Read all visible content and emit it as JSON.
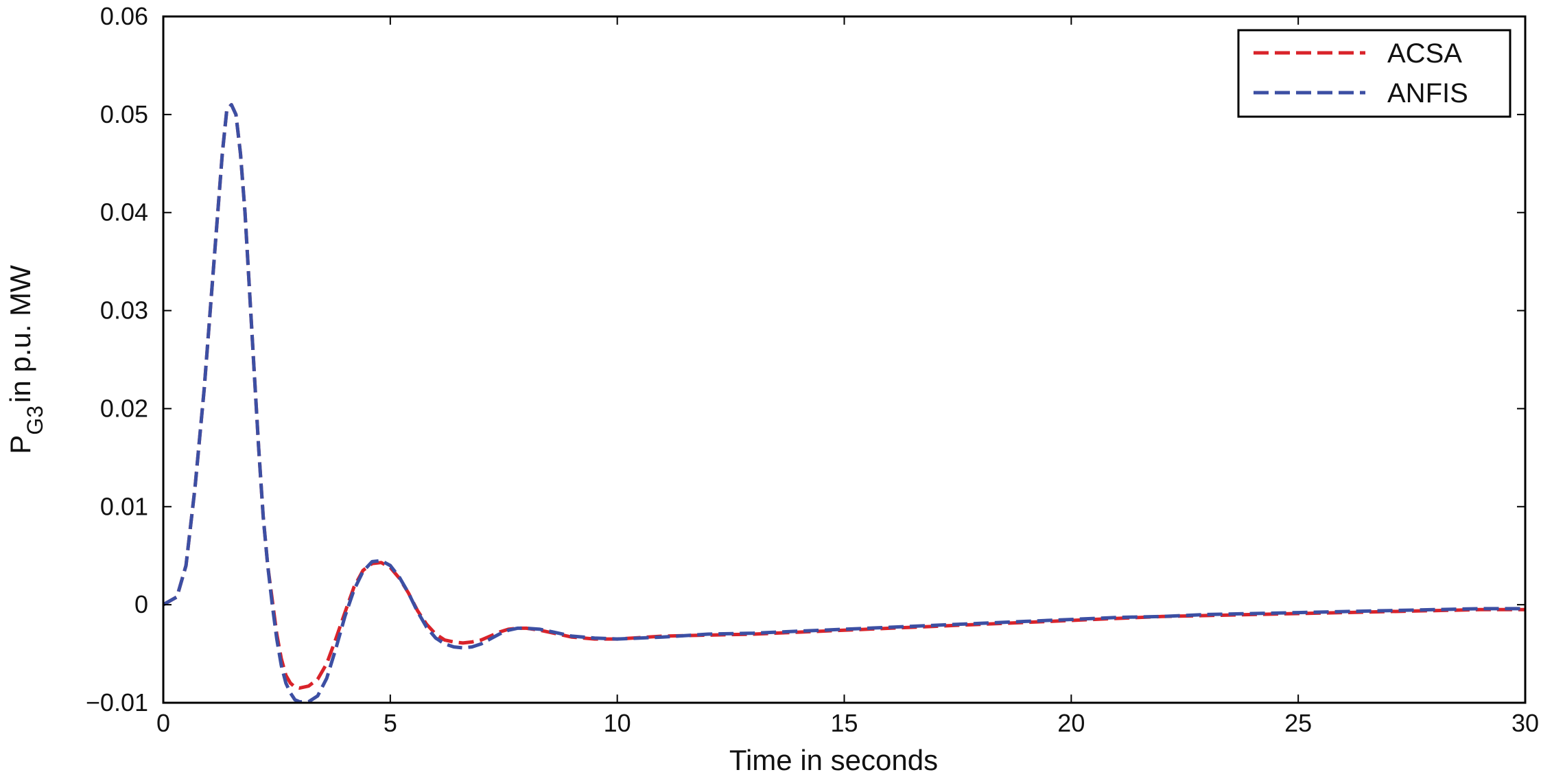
{
  "chart_data": {
    "type": "line",
    "xlabel": "Time in seconds",
    "ylabel": {
      "main": "P",
      "sub": "G3",
      "rest": "in p.u. MW"
    },
    "xlim": [
      0,
      30
    ],
    "ylim": [
      -0.01,
      0.06
    ],
    "xticks": [
      0,
      5,
      10,
      15,
      20,
      25,
      30
    ],
    "xtick_labels": [
      "0",
      "5",
      "10",
      "15",
      "20",
      "25",
      "30"
    ],
    "yticks": [
      -0.01,
      0,
      0.01,
      0.02,
      0.03,
      0.04,
      0.05,
      0.06
    ],
    "ytick_labels": [
      "−0.01",
      "0",
      "0.01",
      "0.02",
      "0.03",
      "0.04",
      "0.05",
      "0.06"
    ],
    "grid": false,
    "legend_position": "top-right",
    "series": [
      {
        "name": "ACSA",
        "color": "#d9232a",
        "dashed": true,
        "x": [
          0,
          0.3,
          0.5,
          0.7,
          0.9,
          1.0,
          1.1,
          1.2,
          1.3,
          1.4,
          1.5,
          1.6,
          1.7,
          1.8,
          1.9,
          2.0,
          2.1,
          2.2,
          2.3,
          2.4,
          2.5,
          2.6,
          2.7,
          2.8,
          2.9,
          3.0,
          3.2,
          3.4,
          3.6,
          3.8,
          4.0,
          4.2,
          4.4,
          4.6,
          4.8,
          5.0,
          5.2,
          5.4,
          5.6,
          5.8,
          6.0,
          6.2,
          6.4,
          6.6,
          6.8,
          7.0,
          7.2,
          7.4,
          7.6,
          7.8,
          8.0,
          8.3,
          8.6,
          9.0,
          9.5,
          10.0,
          11,
          12,
          13,
          14,
          15,
          16,
          17,
          18,
          19,
          20,
          21,
          22,
          23,
          24,
          25,
          26,
          27,
          28,
          29,
          30
        ],
        "values": [
          0,
          0.0008,
          0.004,
          0.012,
          0.022,
          0.028,
          0.034,
          0.04,
          0.046,
          0.0505,
          0.051,
          0.05,
          0.046,
          0.04,
          0.032,
          0.024,
          0.016,
          0.009,
          0.004,
          0.0005,
          -0.003,
          -0.0055,
          -0.0072,
          -0.008,
          -0.0084,
          -0.0085,
          -0.0083,
          -0.0076,
          -0.006,
          -0.0035,
          -0.0008,
          0.0018,
          0.0035,
          0.0042,
          0.0043,
          0.0038,
          0.0027,
          0.0012,
          -0.0006,
          -0.002,
          -0.003,
          -0.0036,
          -0.0038,
          -0.0039,
          -0.0038,
          -0.0036,
          -0.0032,
          -0.0028,
          -0.0025,
          -0.0024,
          -0.0024,
          -0.0026,
          -0.0029,
          -0.0033,
          -0.0035,
          -0.0035,
          -0.0032,
          -0.0031,
          -0.003,
          -0.0028,
          -0.0026,
          -0.0024,
          -0.0022,
          -0.002,
          -0.0018,
          -0.0016,
          -0.0014,
          -0.0012,
          -0.0011,
          -0.001,
          -0.0009,
          -0.0008,
          -0.0007,
          -0.0006,
          -0.0005,
          -0.0005
        ]
      },
      {
        "name": "ANFIS",
        "color": "#3c4fa3",
        "dashed": true,
        "x": [
          0,
          0.3,
          0.5,
          0.7,
          0.9,
          1.0,
          1.1,
          1.2,
          1.3,
          1.4,
          1.5,
          1.6,
          1.7,
          1.8,
          1.9,
          2.0,
          2.1,
          2.2,
          2.3,
          2.4,
          2.5,
          2.6,
          2.7,
          2.8,
          2.9,
          3.0,
          3.2,
          3.4,
          3.6,
          3.8,
          4.0,
          4.2,
          4.4,
          4.6,
          4.8,
          5.0,
          5.2,
          5.4,
          5.6,
          5.8,
          6.0,
          6.2,
          6.4,
          6.6,
          6.8,
          7.0,
          7.2,
          7.4,
          7.6,
          7.8,
          8.0,
          8.3,
          8.6,
          9.0,
          9.5,
          10.0,
          11,
          12,
          13,
          14,
          15,
          16,
          17,
          18,
          19,
          20,
          21,
          22,
          23,
          24,
          25,
          26,
          27,
          28,
          29,
          30
        ],
        "values": [
          0,
          0.0008,
          0.004,
          0.012,
          0.022,
          0.028,
          0.034,
          0.04,
          0.046,
          0.0505,
          0.051,
          0.05,
          0.046,
          0.04,
          0.032,
          0.024,
          0.016,
          0.009,
          0.004,
          0.0,
          -0.0035,
          -0.0062,
          -0.008,
          -0.009,
          -0.0097,
          -0.0099,
          -0.0099,
          -0.0093,
          -0.0075,
          -0.0045,
          -0.0012,
          0.0015,
          0.0034,
          0.0044,
          0.0045,
          0.004,
          0.0028,
          0.0012,
          -0.0007,
          -0.0023,
          -0.0034,
          -0.004,
          -0.0043,
          -0.0044,
          -0.0043,
          -0.004,
          -0.0035,
          -0.003,
          -0.0026,
          -0.0024,
          -0.0024,
          -0.0025,
          -0.0028,
          -0.0032,
          -0.0034,
          -0.0035,
          -0.0033,
          -0.003,
          -0.0029,
          -0.0027,
          -0.0025,
          -0.0023,
          -0.0021,
          -0.0019,
          -0.0017,
          -0.0015,
          -0.0013,
          -0.0012,
          -0.001,
          -0.0009,
          -0.0008,
          -0.0007,
          -0.0006,
          -0.0005,
          -0.0004,
          -0.0004
        ]
      }
    ]
  }
}
